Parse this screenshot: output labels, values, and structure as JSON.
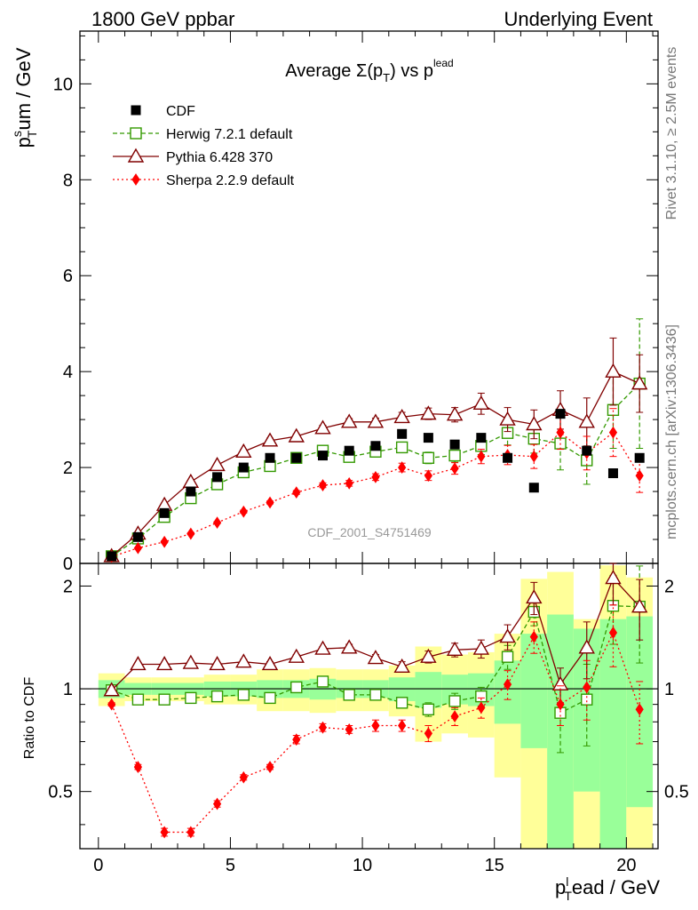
{
  "header": {
    "left": "1800 GeV ppbar",
    "right": "Underlying Event"
  },
  "side": {
    "rivet": "Rivet 3.1.10, ≥ 2.5M events",
    "mcplots": "mcplots.cern.ch [arXiv:1306.3436]"
  },
  "watermark": "CDF_2001_S4751469",
  "chart_data": [
    {
      "type": "scatter",
      "title": "Average Σ(pT) vs pT lead",
      "title_parts": {
        "main": "Average ",
        "sigma": "Σ(p",
        "sub": "T",
        "close": ")",
        "vs": " vs p",
        "sup": "lead"
      },
      "ylabel_parts": {
        "p": "p",
        "sup": "s",
        "sub": "T",
        "rest": "um / GeV"
      },
      "xlim": [
        -0.7,
        21.2
      ],
      "ylim": [
        0,
        11.1
      ],
      "yticks": [
        0,
        2,
        4,
        6,
        8,
        10
      ],
      "yticklabels": [
        "0",
        "2",
        "4",
        "6",
        "8",
        "10"
      ],
      "x": [
        0.5,
        1.5,
        2.5,
        3.5,
        4.5,
        5.5,
        6.5,
        7.5,
        8.5,
        9.5,
        10.5,
        11.5,
        12.5,
        13.5,
        14.5,
        15.5,
        16.5,
        17.5,
        18.5,
        19.5,
        20.5
      ],
      "series": [
        {
          "name": "CDF",
          "values": [
            0.15,
            0.55,
            1.05,
            1.5,
            1.8,
            2.0,
            2.2,
            2.2,
            2.25,
            2.35,
            2.45,
            2.7,
            2.62,
            2.48,
            2.62,
            2.2,
            1.58,
            3.12,
            2.35,
            1.88,
            2.2
          ],
          "color": "#000000"
        },
        {
          "name": "Herwig 7.2.1 default",
          "values": [
            0.15,
            0.52,
            0.97,
            1.36,
            1.65,
            1.9,
            2.03,
            2.2,
            2.35,
            2.22,
            2.33,
            2.42,
            2.2,
            2.25,
            2.45,
            2.72,
            2.6,
            2.5,
            2.15,
            3.2,
            3.75
          ],
          "errors": [
            0.02,
            0.03,
            0.03,
            0.03,
            0.04,
            0.04,
            0.05,
            0.05,
            0.06,
            0.06,
            0.08,
            0.1,
            0.12,
            0.14,
            0.18,
            0.25,
            0.3,
            0.55,
            0.5,
            0.8,
            1.35
          ],
          "color": "#339900"
        },
        {
          "name": "Pythia 6.428 370",
          "values": [
            0.15,
            0.62,
            1.22,
            1.7,
            2.05,
            2.33,
            2.56,
            2.65,
            2.82,
            2.95,
            2.95,
            3.05,
            3.12,
            3.1,
            3.33,
            3.0,
            2.9,
            3.2,
            2.95,
            4.0,
            3.75
          ],
          "errors": [
            0.02,
            0.03,
            0.03,
            0.03,
            0.04,
            0.04,
            0.05,
            0.05,
            0.06,
            0.07,
            0.08,
            0.1,
            0.12,
            0.15,
            0.22,
            0.25,
            0.3,
            0.4,
            0.5,
            0.7,
            0.6
          ],
          "color": "#800000"
        },
        {
          "name": "Sherpa 2.2.9 default",
          "values": [
            0.14,
            0.32,
            0.45,
            0.62,
            0.85,
            1.08,
            1.27,
            1.48,
            1.63,
            1.67,
            1.8,
            2.0,
            1.83,
            1.98,
            2.23,
            2.26,
            2.23,
            2.73,
            2.3,
            2.73,
            1.83
          ],
          "errors": [
            0.01,
            0.01,
            0.02,
            0.02,
            0.02,
            0.03,
            0.03,
            0.04,
            0.05,
            0.06,
            0.07,
            0.09,
            0.1,
            0.12,
            0.15,
            0.2,
            0.25,
            0.35,
            0.35,
            0.5,
            0.35
          ],
          "color": "#ff0000"
        }
      ],
      "legend_position": "top-left"
    },
    {
      "type": "scatter",
      "ylabel": "Ratio to CDF",
      "xlabel_parts": {
        "p": "p",
        "sup": "l",
        "sub": "T",
        "rest": "ead / GeV"
      },
      "xlim": [
        -0.7,
        21.2
      ],
      "ylim": [
        0.34,
        2.33
      ],
      "xticks": [
        0,
        5,
        10,
        15,
        20
      ],
      "xticklabels": [
        "0",
        "5",
        "10",
        "15",
        "20"
      ],
      "yticks": [
        0.5,
        1,
        2
      ],
      "yticklabels": [
        "0.5",
        "1",
        "2"
      ],
      "reference_line": 1,
      "x": [
        0.5,
        1.5,
        2.5,
        3.5,
        4.5,
        5.5,
        6.5,
        7.5,
        8.5,
        9.5,
        10.5,
        11.5,
        12.5,
        13.5,
        14.5,
        15.5,
        16.5,
        17.5,
        18.5,
        19.5,
        20.5
      ],
      "band_inner": [
        [
          0.94,
          1.06
        ],
        [
          0.96,
          1.04
        ],
        [
          0.96,
          1.04
        ],
        [
          0.96,
          1.04
        ],
        [
          0.95,
          1.05
        ],
        [
          0.95,
          1.05
        ],
        [
          0.94,
          1.06
        ],
        [
          0.94,
          1.06
        ],
        [
          0.93,
          1.07
        ],
        [
          0.94,
          1.06
        ],
        [
          0.94,
          1.06
        ],
        [
          0.92,
          1.08
        ],
        [
          0.88,
          1.12
        ],
        [
          0.9,
          1.1
        ],
        [
          0.89,
          1.11
        ],
        [
          0.79,
          1.21
        ],
        [
          0.67,
          1.45
        ],
        [
          0.25,
          1.65
        ],
        [
          0.5,
          1.5
        ],
        [
          0.25,
          1.6
        ],
        [
          0.45,
          1.63
        ]
      ],
      "band_outer": [
        [
          0.89,
          1.11
        ],
        [
          0.92,
          1.08
        ],
        [
          0.92,
          1.08
        ],
        [
          0.92,
          1.08
        ],
        [
          0.9,
          1.1
        ],
        [
          0.9,
          1.1
        ],
        [
          0.86,
          1.14
        ],
        [
          0.86,
          1.14
        ],
        [
          0.85,
          1.15
        ],
        [
          0.86,
          1.14
        ],
        [
          0.86,
          1.14
        ],
        [
          0.83,
          1.17
        ],
        [
          0.7,
          1.33
        ],
        [
          0.74,
          1.26
        ],
        [
          0.72,
          1.28
        ],
        [
          0.55,
          1.45
        ],
        [
          0.25,
          2.1
        ],
        [
          0.2,
          2.2
        ],
        [
          0.25,
          1.6
        ],
        [
          0.2,
          2.3
        ],
        [
          0.32,
          2.12
        ]
      ],
      "series": [
        {
          "name": "Herwig 7.2.1 default",
          "values": [
            0.99,
            0.93,
            0.93,
            0.94,
            0.95,
            0.96,
            0.94,
            1.01,
            1.05,
            0.96,
            0.96,
            0.91,
            0.87,
            0.92,
            0.95,
            1.24,
            1.68,
            0.85,
            0.93,
            1.75,
            1.74
          ],
          "errors": [
            0.01,
            0.01,
            0.01,
            0.01,
            0.01,
            0.01,
            0.01,
            0.02,
            0.02,
            0.02,
            0.02,
            0.03,
            0.04,
            0.05,
            0.06,
            0.1,
            0.15,
            0.2,
            0.25,
            0.4,
            0.55
          ],
          "color": "#339900"
        },
        {
          "name": "Pythia 6.428 370",
          "values": [
            0.99,
            1.18,
            1.18,
            1.19,
            1.18,
            1.2,
            1.18,
            1.24,
            1.31,
            1.32,
            1.23,
            1.16,
            1.24,
            1.3,
            1.31,
            1.42,
            1.85,
            1.03,
            1.32,
            2.11,
            1.74
          ],
          "errors": [
            0.01,
            0.01,
            0.01,
            0.01,
            0.01,
            0.02,
            0.02,
            0.02,
            0.02,
            0.03,
            0.03,
            0.04,
            0.05,
            0.06,
            0.08,
            0.12,
            0.2,
            0.12,
            0.25,
            0.35,
            0.35
          ],
          "color": "#800000"
        },
        {
          "name": "Sherpa 2.2.9 default",
          "values": [
            0.9,
            0.59,
            0.38,
            0.38,
            0.46,
            0.55,
            0.59,
            0.71,
            0.77,
            0.76,
            0.78,
            0.78,
            0.74,
            0.83,
            0.88,
            1.03,
            1.42,
            0.9,
            1.01,
            1.46,
            0.87
          ],
          "errors": [
            0.01,
            0.01,
            0.01,
            0.01,
            0.01,
            0.01,
            0.01,
            0.02,
            0.02,
            0.02,
            0.03,
            0.03,
            0.04,
            0.05,
            0.06,
            0.1,
            0.15,
            0.12,
            0.2,
            0.3,
            0.18
          ],
          "color": "#ff0000"
        }
      ]
    }
  ]
}
